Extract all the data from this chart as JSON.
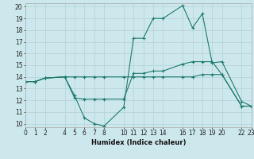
{
  "xlabel": "Humidex (Indice chaleur)",
  "bg_color": "#cde8ed",
  "grid_color": "#b8d8de",
  "line_color": "#1e7a6d",
  "xlim": [
    0,
    23
  ],
  "ylim": [
    9.7,
    20.3
  ],
  "yticks": [
    10,
    11,
    12,
    13,
    14,
    15,
    16,
    17,
    18,
    19,
    20
  ],
  "xticks": [
    0,
    1,
    2,
    4,
    5,
    6,
    7,
    8,
    10,
    11,
    12,
    13,
    14,
    16,
    17,
    18,
    19,
    20,
    22,
    23
  ],
  "xtick_labels": [
    "0",
    "1",
    "2",
    "4",
    "5",
    "6",
    "7",
    "8",
    "10",
    "11",
    "12",
    "13",
    "14",
    "16",
    "17",
    "18",
    "19",
    "20",
    "22",
    "23"
  ],
  "line1_x": [
    0,
    1,
    2,
    4,
    5,
    6,
    7,
    8,
    10,
    11,
    12,
    13,
    14,
    16,
    17,
    18,
    19,
    20,
    22,
    23
  ],
  "line1_y": [
    13.6,
    13.6,
    13.9,
    14.0,
    12.4,
    10.5,
    10.0,
    9.8,
    11.4,
    17.3,
    17.3,
    19.0,
    19.0,
    20.1,
    18.2,
    19.4,
    15.2,
    15.3,
    11.9,
    11.5
  ],
  "line2_x": [
    0,
    1,
    2,
    4,
    5,
    6,
    7,
    8,
    10,
    11,
    12,
    13,
    14,
    16,
    17,
    18,
    19,
    20,
    22,
    23
  ],
  "line2_y": [
    13.6,
    13.6,
    13.9,
    14.0,
    12.2,
    12.1,
    12.1,
    12.1,
    12.1,
    14.3,
    14.3,
    14.5,
    14.5,
    15.1,
    15.3,
    15.3,
    15.3,
    14.2,
    11.5,
    11.5
  ],
  "line3_x": [
    0,
    1,
    2,
    4,
    5,
    6,
    7,
    8,
    10,
    11,
    12,
    13,
    14,
    16,
    17,
    18,
    19,
    20,
    22,
    23
  ],
  "line3_y": [
    13.6,
    13.6,
    13.9,
    14.0,
    14.0,
    14.0,
    14.0,
    14.0,
    14.0,
    14.0,
    14.0,
    14.0,
    14.0,
    14.0,
    14.0,
    14.2,
    14.2,
    14.2,
    11.5,
    11.5
  ]
}
